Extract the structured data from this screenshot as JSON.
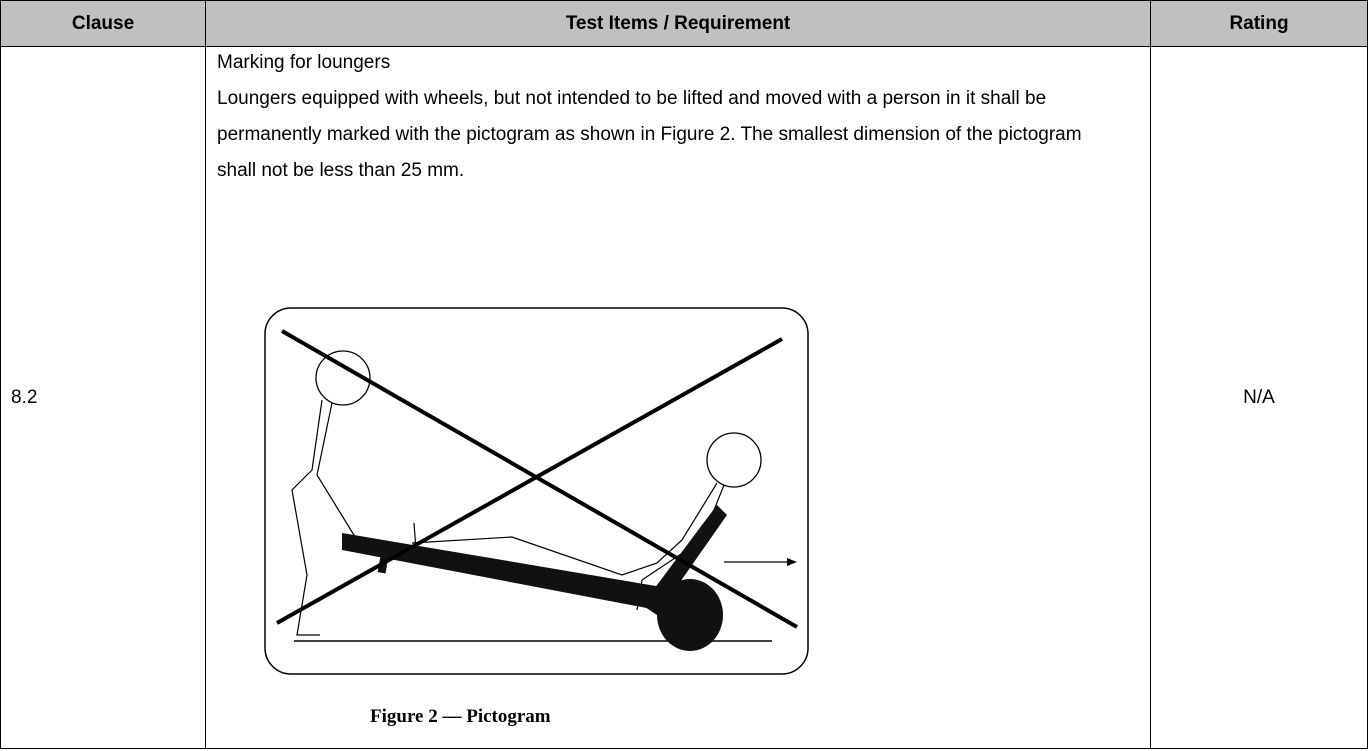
{
  "table": {
    "header": [
      "Clause",
      "Test Items / Requirement",
      "Rating"
    ],
    "rows": [
      {
        "clause": "8.2",
        "requirement_title": "Marking for loungers",
        "requirement_text": "Loungers equipped with wheels, but not intended to be lifted and moved with a person in it shall be permanently marked with the pictogram as shown in Figure 2. The smallest dimension of the pictogram shall not be less than 25 mm.",
        "figure_caption": "Figure 2 — Pictogram",
        "rating": "N/A"
      }
    ]
  }
}
